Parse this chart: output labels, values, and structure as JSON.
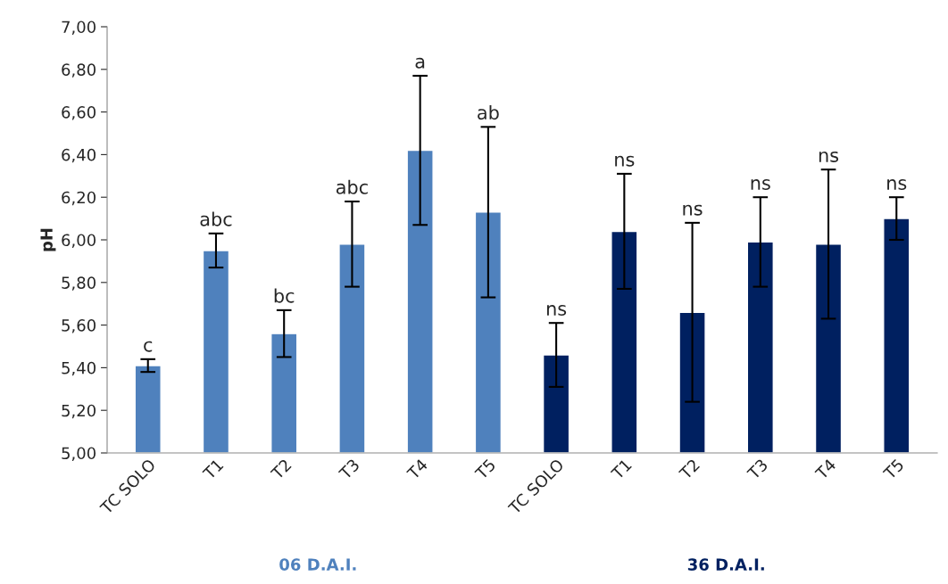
{
  "chart_data": {
    "type": "bar",
    "ylabel": "pH",
    "categories": [
      "TC SOLO",
      "T1",
      "T2",
      "T3",
      "T4",
      "T5",
      "TC SOLO",
      "T1",
      "T2",
      "T3",
      "T4",
      "T5"
    ],
    "series": [
      {
        "name": "06 D.A.I.",
        "color": "#4f81bd",
        "values": [
          5.41,
          5.95,
          5.56,
          5.98,
          6.42,
          6.13,
          null,
          null,
          null,
          null,
          null,
          null
        ],
        "errors": [
          0.03,
          0.08,
          0.11,
          0.2,
          0.35,
          0.4,
          null,
          null,
          null,
          null,
          null,
          null
        ]
      },
      {
        "name": "36 D.A.I.",
        "color": "#002060",
        "values": [
          null,
          null,
          null,
          null,
          null,
          null,
          5.46,
          6.04,
          5.66,
          5.99,
          5.98,
          6.1
        ],
        "errors": [
          null,
          null,
          null,
          null,
          null,
          null,
          0.15,
          0.27,
          0.42,
          0.21,
          0.35,
          0.1
        ]
      }
    ],
    "annotations": [
      {
        "text": "c",
        "x": "TC SOLO",
        "y": 5.44
      },
      {
        "text": "abc",
        "x": "T1",
        "y": 6.03
      },
      {
        "text": "bc",
        "x": "T2",
        "y": 5.67
      },
      {
        "text": "abc",
        "x": "T3",
        "y": 6.18
      },
      {
        "text": "a",
        "x": "T4",
        "y": 6.77
      },
      {
        "text": "ab",
        "x": "T5",
        "y": 6.53
      },
      "ns",
      "ns",
      "ns",
      "ns",
      "ns",
      "ns"
    ],
    "ylim": [
      5.0,
      7.0
    ],
    "yticks": [
      {
        "value": 5.0,
        "label": "5,00"
      },
      {
        "value": 5.2,
        "label": "5,20"
      },
      {
        "value": 5.4,
        "label": "5,40"
      },
      {
        "value": 5.6,
        "label": "5,60"
      },
      {
        "value": 5.8,
        "label": "5,80"
      },
      {
        "value": 6.0,
        "label": "6,00"
      },
      {
        "value": 6.2,
        "label": "6,20"
      },
      {
        "value": 6.4,
        "label": "6,40"
      },
      {
        "value": 6.6,
        "label": "6,60"
      },
      {
        "value": 6.8,
        "label": "6,80"
      },
      {
        "value": 7.0,
        "label": "7,00"
      }
    ],
    "grid": false,
    "legend": false
  }
}
